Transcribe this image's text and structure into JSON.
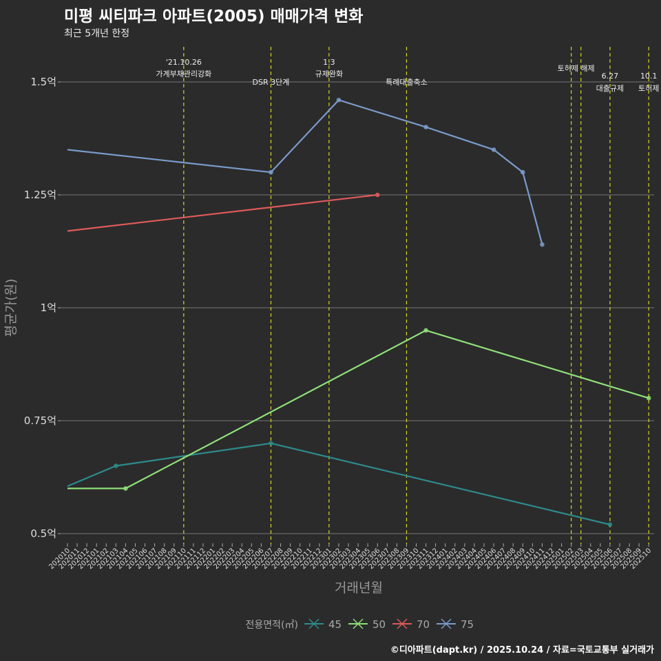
{
  "title": "미평 씨티파크 아파트(2005) 매매가격 변화",
  "subtitle": "최근 5개년 한정",
  "caption": "©디아파트(dapt.kr) / 2025.10.24 / 자료=국토교통부 실거래가",
  "chart_data": {
    "type": "line",
    "xlabel": "거래년월",
    "ylabel": "평균가(원)",
    "x": [
      "202010",
      "202011",
      "202012",
      "202101",
      "202102",
      "202103",
      "202104",
      "202105",
      "202106",
      "202107",
      "202108",
      "202109",
      "202110",
      "202111",
      "202112",
      "202201",
      "202202",
      "202203",
      "202204",
      "202205",
      "202206",
      "202207",
      "202208",
      "202209",
      "202210",
      "202211",
      "202212",
      "202301",
      "202302",
      "202303",
      "202304",
      "202305",
      "202306",
      "202307",
      "202308",
      "202309",
      "202310",
      "202311",
      "202312",
      "202401",
      "202402",
      "202403",
      "202404",
      "202405",
      "202406",
      "202407",
      "202408",
      "202409",
      "202410",
      "202411",
      "202412",
      "202501",
      "202502",
      "202503",
      "202504",
      "202505",
      "202506",
      "202507",
      "202508",
      "202509",
      "202510"
    ],
    "ylim": [
      0.48,
      1.56
    ],
    "yticks": [
      {
        "v": 0.5,
        "label": "0.5억"
      },
      {
        "v": 0.75,
        "label": "0.75억"
      },
      {
        "v": 1.0,
        "label": "1억"
      },
      {
        "v": 1.25,
        "label": "1.25억"
      },
      {
        "v": 1.5,
        "label": "1.5억"
      }
    ],
    "legend_title": "전용면적(㎡)",
    "legend_position": "bottom",
    "series": [
      {
        "name": "45",
        "color": "#2e8b8b",
        "points": [
          [
            "202010",
            0.605
          ],
          [
            "202103",
            0.65
          ],
          [
            "202207",
            0.7
          ],
          [
            "202506",
            0.52
          ]
        ]
      },
      {
        "name": "50",
        "color": "#90e07a",
        "points": [
          [
            "202010",
            0.6
          ],
          [
            "202104",
            0.6
          ],
          [
            "202311",
            0.95
          ],
          [
            "202510",
            0.8
          ]
        ]
      },
      {
        "name": "70",
        "color": "#e05a5a",
        "points": [
          [
            "202010",
            1.17
          ],
          [
            "202306",
            1.25
          ]
        ]
      },
      {
        "name": "75",
        "color": "#7b9bcb",
        "points": [
          [
            "202010",
            1.35
          ],
          [
            "202207",
            1.3
          ],
          [
            "202302",
            1.46
          ],
          [
            "202311",
            1.4
          ],
          [
            "202406",
            1.35
          ],
          [
            "202409",
            1.3
          ],
          [
            "202411",
            1.14
          ]
        ]
      }
    ],
    "events": [
      {
        "x": "202110",
        "lines": [
          "'21.10.26",
          "가계부채관리강화"
        ],
        "row": 0
      },
      {
        "x": "202207",
        "lines": [
          "DSR 3단계"
        ],
        "row": 2
      },
      {
        "x": "202301",
        "lines": [
          "1.3",
          "규제완화"
        ],
        "row": 0
      },
      {
        "x": "202309",
        "lines": [
          "특례대출축소"
        ],
        "row": 2
      },
      {
        "x": "202502",
        "lines": [
          "토허제 해제"
        ],
        "row": 1,
        "offset": 7
      },
      {
        "x": "202503",
        "lines": [],
        "row": 1
      },
      {
        "x": "202506",
        "lines": [
          "6.27",
          "대출규제"
        ],
        "row": 3
      },
      {
        "x": "202510",
        "lines": [
          "10.1",
          "토허제"
        ],
        "row": 3
      }
    ]
  }
}
